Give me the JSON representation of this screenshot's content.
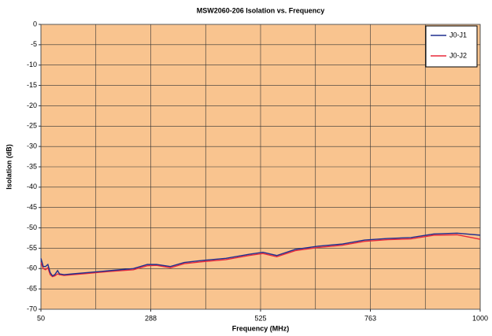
{
  "chart_data": {
    "type": "line",
    "title": "MSW2060-206 Isolation vs. Frequency",
    "xlabel": "Frequency (MHz)",
    "ylabel": "Isolation (dB)",
    "x": [
      50,
      55,
      60,
      65,
      70,
      75,
      80,
      86,
      90,
      100,
      120,
      150,
      200,
      250,
      280,
      300,
      330,
      360,
      400,
      450,
      500,
      530,
      560,
      600,
      650,
      700,
      750,
      800,
      850,
      900,
      950,
      1000
    ],
    "series": [
      {
        "name": "J0-J1",
        "color": "#1f2f8f",
        "values": [
          -57.5,
          -59.5,
          -59.5,
          -59,
          -61,
          -61.8,
          -61.5,
          -60.5,
          -61.3,
          -61.5,
          -61.3,
          -61,
          -60.5,
          -60,
          -59,
          -59,
          -59.5,
          -58.5,
          -58,
          -57.5,
          -56.5,
          -56,
          -56.8,
          -55.3,
          -54.5,
          -54,
          -53,
          -52.6,
          -52.4,
          -51.5,
          -51.3,
          -51.8
        ]
      },
      {
        "name": "J0-J2",
        "color": "#e8283a",
        "values": [
          -58.5,
          -60,
          -60.3,
          -59.8,
          -61.5,
          -62,
          -61.8,
          -61.3,
          -61.5,
          -61.7,
          -61.5,
          -61.2,
          -60.7,
          -60.3,
          -59.3,
          -59.2,
          -59.8,
          -58.8,
          -58.3,
          -57.8,
          -56.8,
          -56.3,
          -57.1,
          -55.6,
          -54.8,
          -54.3,
          -53.3,
          -52.9,
          -52.7,
          -51.8,
          -51.7,
          -52.8
        ]
      }
    ],
    "xlim": [
      50,
      1000
    ],
    "xticks": [
      50,
      {
        "value": 287.5,
        "label": "288"
      },
      525,
      {
        "value": 762.5,
        "label": "763"
      },
      1000
    ],
    "xminor": [
      168.75,
      406.25,
      643.75,
      881.25
    ],
    "ylim": [
      -70,
      0
    ],
    "yticks": [
      -70,
      -65,
      -60,
      -55,
      -50,
      -45,
      -40,
      -35,
      -30,
      -25,
      -20,
      -15,
      -10,
      -5,
      0
    ],
    "grid": true,
    "legend": "upper right",
    "background": "#f9c48f"
  }
}
